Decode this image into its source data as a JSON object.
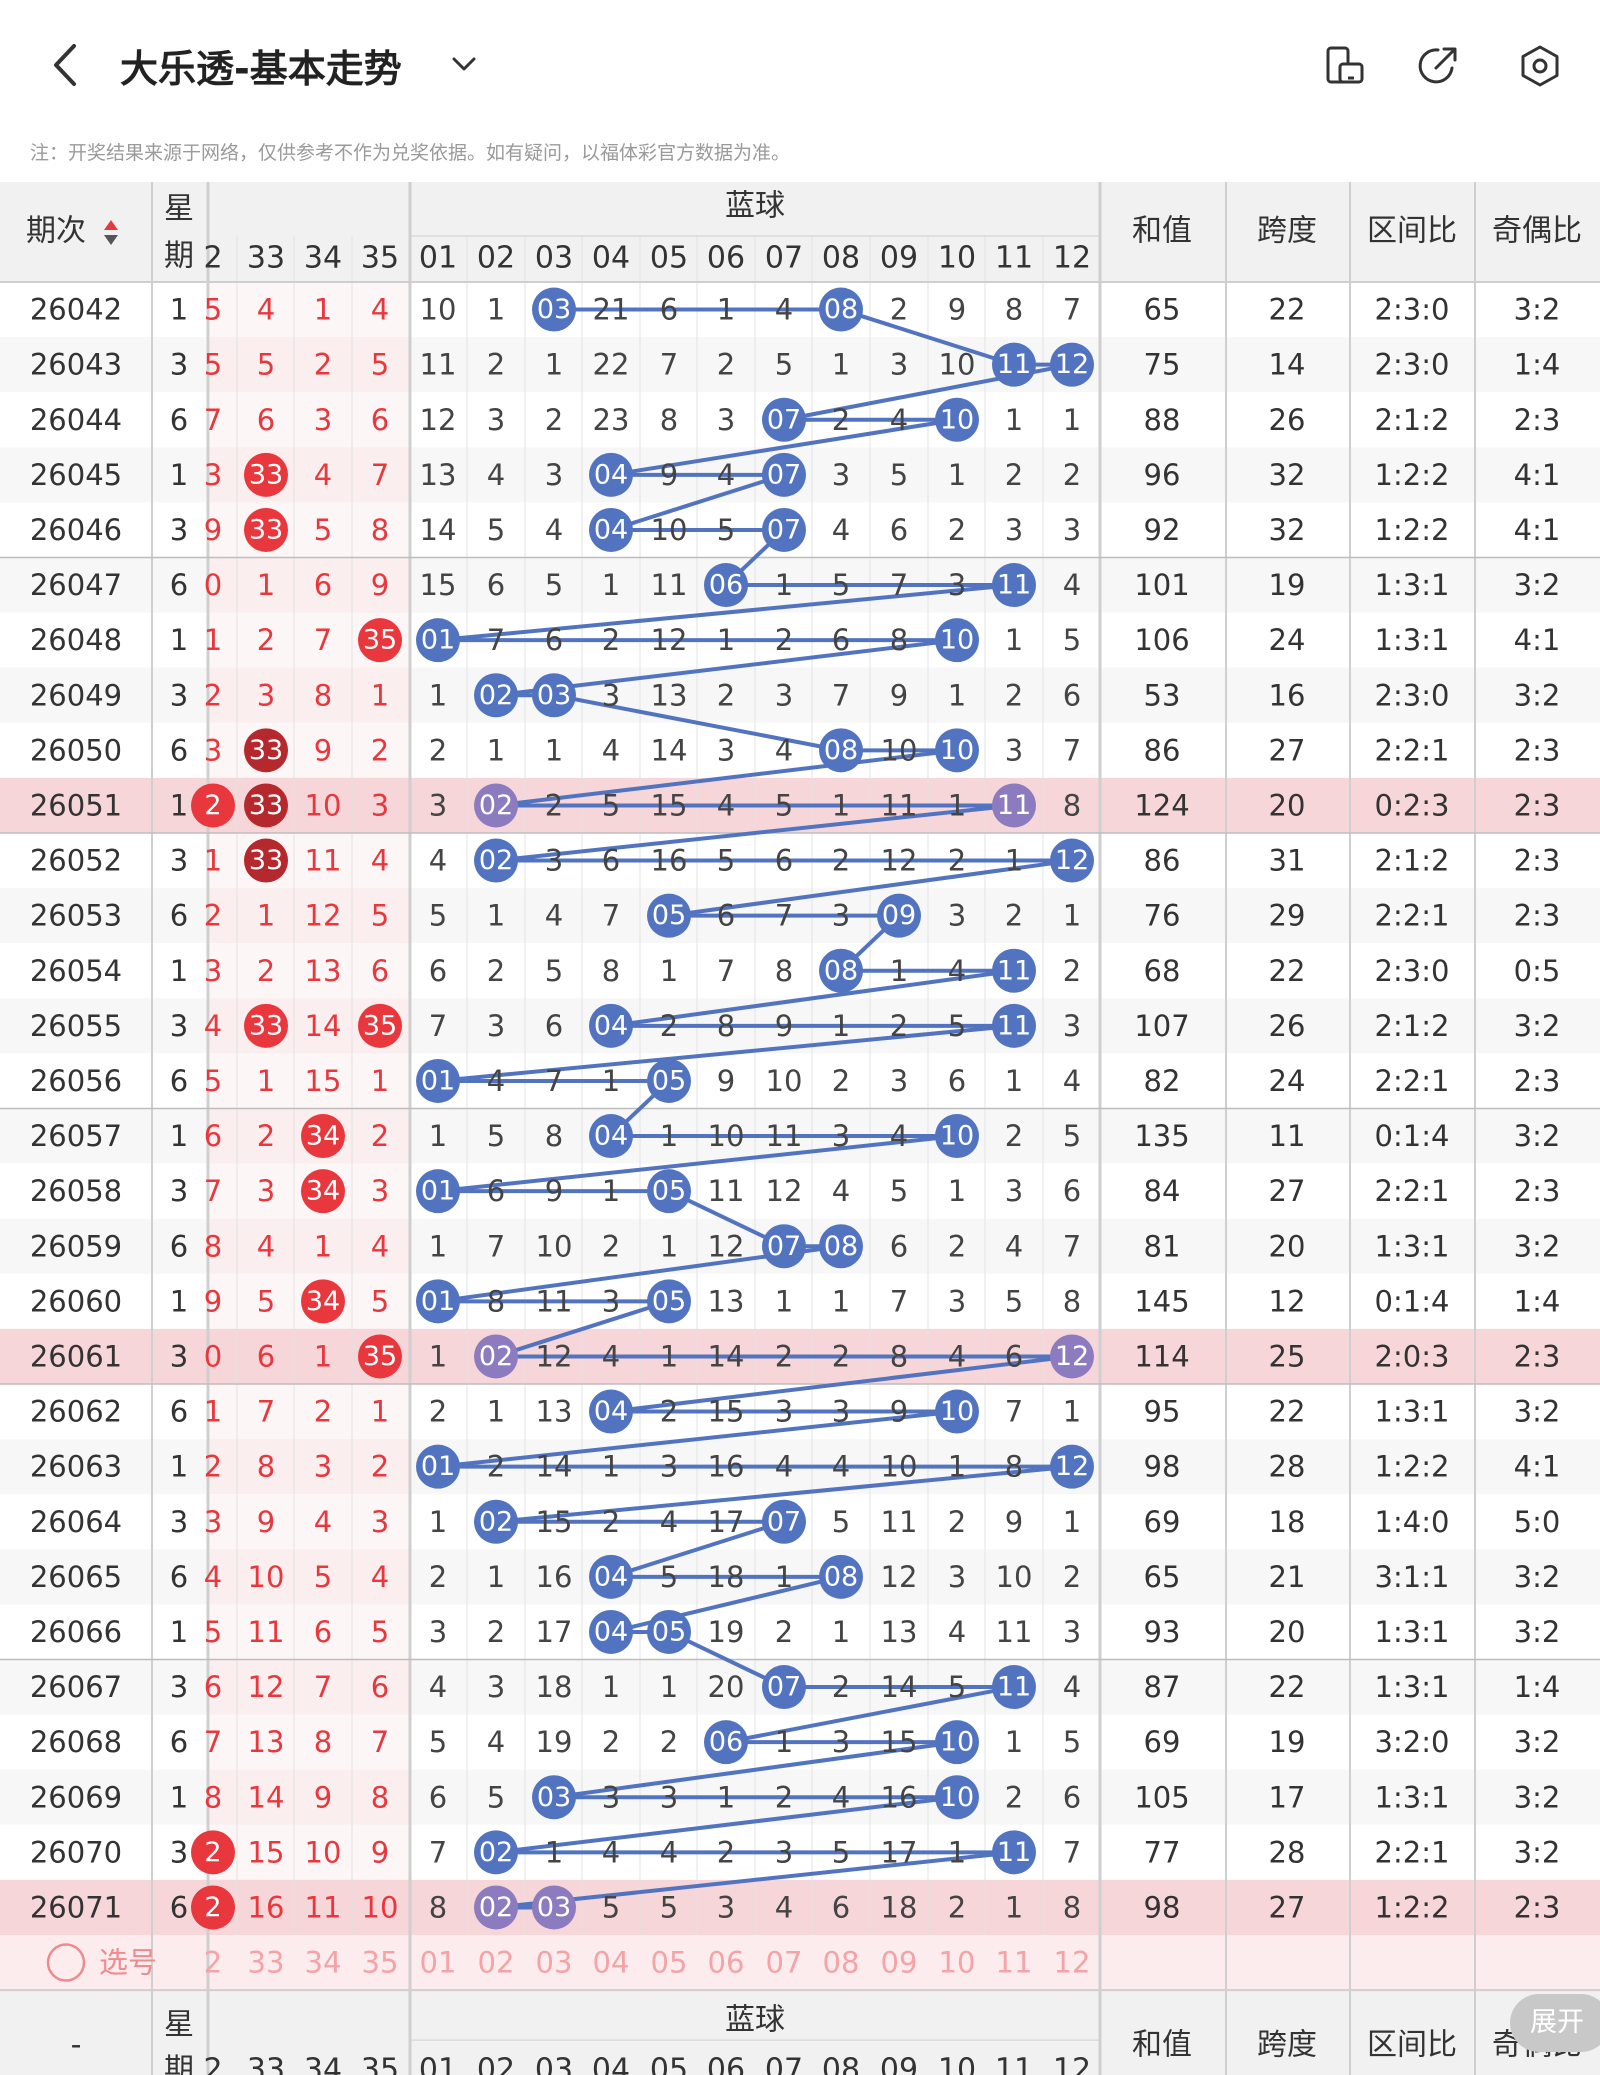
{
  "header": {
    "title": "大乐透-基本走势",
    "back_icon": "chevron-left-icon",
    "dropdown_icon": "chevron-down-icon",
    "icons": [
      "phone-landscape-icon",
      "share-icon",
      "settings-icon"
    ]
  },
  "notice": "注：开奖结果来源于网络，仅供参考不作为兑奖依据。如有疑问，以福体彩官方数据为准。",
  "table": {
    "col_period": "期次",
    "col_week": "星期",
    "blue_group": "蓝球",
    "front_visible_cols": [
      "2",
      "33",
      "34",
      "35"
    ],
    "blue_cols": [
      "01",
      "02",
      "03",
      "04",
      "05",
      "06",
      "07",
      "08",
      "09",
      "10",
      "11",
      "12"
    ],
    "stat_cols": [
      "和值",
      "跨度",
      "区间比",
      "奇偶比"
    ],
    "rows": [
      {
        "p": "26042",
        "w": "1",
        "f": [
          "5",
          "4",
          "1",
          "4"
        ],
        "fh": [],
        "b": [
          "10",
          "1",
          "03",
          "21",
          "6",
          "1",
          "4",
          "08",
          "2",
          "9",
          "8",
          "7"
        ],
        "bh": [
          3,
          8
        ],
        "s": [
          "65",
          "22",
          "2:3:0",
          "3:2"
        ]
      },
      {
        "p": "26043",
        "w": "3",
        "f": [
          "5",
          "5",
          "2",
          "5"
        ],
        "fh": [],
        "b": [
          "11",
          "2",
          "1",
          "22",
          "7",
          "2",
          "5",
          "1",
          "3",
          "10",
          "11",
          "12"
        ],
        "bh": [
          11,
          12
        ],
        "s": [
          "75",
          "14",
          "2:3:0",
          "1:4"
        ]
      },
      {
        "p": "26044",
        "w": "6",
        "f": [
          "7",
          "6",
          "3",
          "6"
        ],
        "fh": [],
        "b": [
          "12",
          "3",
          "2",
          "23",
          "8",
          "3",
          "07",
          "2",
          "4",
          "10",
          "1",
          "1"
        ],
        "bh": [
          7,
          10
        ],
        "s": [
          "88",
          "26",
          "2:1:2",
          "2:3"
        ]
      },
      {
        "p": "26045",
        "w": "1",
        "f": [
          "3",
          "33",
          "4",
          "7"
        ],
        "fh": [
          1
        ],
        "b": [
          "13",
          "4",
          "3",
          "04",
          "9",
          "4",
          "07",
          "3",
          "5",
          "1",
          "2",
          "2"
        ],
        "bh": [
          4,
          7
        ],
        "s": [
          "96",
          "32",
          "1:2:2",
          "4:1"
        ]
      },
      {
        "p": "26046",
        "w": "3",
        "f": [
          "9",
          "33",
          "5",
          "8"
        ],
        "fh": [
          1
        ],
        "b": [
          "14",
          "5",
          "4",
          "04",
          "10",
          "5",
          "07",
          "4",
          "6",
          "2",
          "3",
          "3"
        ],
        "bh": [
          4,
          7
        ],
        "s": [
          "92",
          "32",
          "1:2:2",
          "4:1"
        ]
      },
      {
        "p": "26047",
        "w": "6",
        "f": [
          "0",
          "1",
          "6",
          "9"
        ],
        "fh": [],
        "b": [
          "15",
          "6",
          "5",
          "1",
          "11",
          "06",
          "1",
          "5",
          "7",
          "3",
          "11",
          "4"
        ],
        "bh": [
          6,
          11
        ],
        "s": [
          "101",
          "19",
          "1:3:1",
          "3:2"
        ]
      },
      {
        "p": "26048",
        "w": "1",
        "f": [
          "1",
          "2",
          "7",
          "35"
        ],
        "fh": [
          3
        ],
        "b": [
          "01",
          "7",
          "6",
          "2",
          "12",
          "1",
          "2",
          "6",
          "8",
          "10",
          "1",
          "5"
        ],
        "bh": [
          1,
          10
        ],
        "s": [
          "106",
          "24",
          "1:3:1",
          "4:1"
        ]
      },
      {
        "p": "26049",
        "w": "3",
        "f": [
          "2",
          "3",
          "8",
          "1"
        ],
        "fh": [],
        "b": [
          "1",
          "02",
          "03",
          "3",
          "13",
          "2",
          "3",
          "7",
          "9",
          "1",
          "2",
          "6"
        ],
        "bh": [
          2,
          3
        ],
        "s": [
          "53",
          "16",
          "2:3:0",
          "3:2"
        ]
      },
      {
        "p": "26050",
        "w": "6",
        "f": [
          "3",
          "33",
          "9",
          "2"
        ],
        "fh": [
          1
        ],
        "b": [
          "2",
          "1",
          "1",
          "4",
          "14",
          "3",
          "4",
          "08",
          "10",
          "10",
          "3",
          "7"
        ],
        "bh": [
          8,
          10
        ],
        "s": [
          "86",
          "27",
          "2:2:1",
          "2:3"
        ]
      },
      {
        "p": "26051",
        "w": "1",
        "f": [
          "2",
          "33",
          "10",
          "3"
        ],
        "fh": [
          0,
          1
        ],
        "b": [
          "3",
          "02",
          "2",
          "5",
          "15",
          "4",
          "5",
          "1",
          "11",
          "1",
          "11",
          "8"
        ],
        "bh": [
          2,
          11
        ],
        "s": [
          "124",
          "20",
          "0:2:3",
          "2:3"
        ],
        "hl": true
      },
      {
        "p": "26052",
        "w": "3",
        "f": [
          "1",
          "33",
          "11",
          "4"
        ],
        "fh": [
          1
        ],
        "b": [
          "4",
          "02",
          "3",
          "6",
          "16",
          "5",
          "6",
          "2",
          "12",
          "2",
          "1",
          "12"
        ],
        "bh": [
          2,
          12
        ],
        "s": [
          "86",
          "31",
          "2:1:2",
          "2:3"
        ]
      },
      {
        "p": "26053",
        "w": "6",
        "f": [
          "2",
          "1",
          "12",
          "5"
        ],
        "fh": [],
        "b": [
          "5",
          "1",
          "4",
          "7",
          "05",
          "6",
          "7",
          "3",
          "09",
          "3",
          "2",
          "1"
        ],
        "bh": [
          5,
          9
        ],
        "s": [
          "76",
          "29",
          "2:2:1",
          "2:3"
        ]
      },
      {
        "p": "26054",
        "w": "1",
        "f": [
          "3",
          "2",
          "13",
          "6"
        ],
        "fh": [],
        "b": [
          "6",
          "2",
          "5",
          "8",
          "1",
          "7",
          "8",
          "08",
          "1",
          "4",
          "11",
          "2"
        ],
        "bh": [
          8,
          11
        ],
        "s": [
          "68",
          "22",
          "2:3:0",
          "0:5"
        ]
      },
      {
        "p": "26055",
        "w": "3",
        "f": [
          "4",
          "33",
          "14",
          "35"
        ],
        "fh": [
          1,
          3
        ],
        "b": [
          "7",
          "3",
          "6",
          "04",
          "2",
          "8",
          "9",
          "1",
          "2",
          "5",
          "11",
          "3"
        ],
        "bh": [
          4,
          11
        ],
        "s": [
          "107",
          "26",
          "2:1:2",
          "3:2"
        ]
      },
      {
        "p": "26056",
        "w": "6",
        "f": [
          "5",
          "1",
          "15",
          "1"
        ],
        "fh": [],
        "b": [
          "01",
          "4",
          "7",
          "1",
          "05",
          "9",
          "10",
          "2",
          "3",
          "6",
          "1",
          "4"
        ],
        "bh": [
          1,
          5
        ],
        "s": [
          "82",
          "24",
          "2:2:1",
          "2:3"
        ]
      },
      {
        "p": "26057",
        "w": "1",
        "f": [
          "6",
          "2",
          "34",
          "2"
        ],
        "fh": [
          2
        ],
        "b": [
          "1",
          "5",
          "8",
          "04",
          "1",
          "10",
          "11",
          "3",
          "4",
          "10",
          "2",
          "5"
        ],
        "bh": [
          4,
          10
        ],
        "s": [
          "135",
          "11",
          "0:1:4",
          "3:2"
        ]
      },
      {
        "p": "26058",
        "w": "3",
        "f": [
          "7",
          "3",
          "34",
          "3"
        ],
        "fh": [
          2
        ],
        "b": [
          "01",
          "6",
          "9",
          "1",
          "05",
          "11",
          "12",
          "4",
          "5",
          "1",
          "3",
          "6"
        ],
        "bh": [
          1,
          5
        ],
        "s": [
          "84",
          "27",
          "2:2:1",
          "2:3"
        ]
      },
      {
        "p": "26059",
        "w": "6",
        "f": [
          "8",
          "4",
          "1",
          "4"
        ],
        "fh": [],
        "b": [
          "1",
          "7",
          "10",
          "2",
          "1",
          "12",
          "07",
          "08",
          "6",
          "2",
          "4",
          "7"
        ],
        "bh": [
          7,
          8
        ],
        "s": [
          "81",
          "20",
          "1:3:1",
          "3:2"
        ]
      },
      {
        "p": "26060",
        "w": "1",
        "f": [
          "9",
          "5",
          "34",
          "5"
        ],
        "fh": [
          2
        ],
        "b": [
          "01",
          "8",
          "11",
          "3",
          "05",
          "13",
          "1",
          "1",
          "7",
          "3",
          "5",
          "8"
        ],
        "bh": [
          1,
          5
        ],
        "s": [
          "145",
          "12",
          "0:1:4",
          "1:4"
        ]
      },
      {
        "p": "26061",
        "w": "3",
        "f": [
          "0",
          "6",
          "1",
          "35"
        ],
        "fh": [
          3
        ],
        "b": [
          "1",
          "02",
          "12",
          "4",
          "1",
          "14",
          "2",
          "2",
          "8",
          "4",
          "6",
          "12"
        ],
        "bh": [
          2,
          12
        ],
        "s": [
          "114",
          "25",
          "2:0:3",
          "2:3"
        ],
        "hl": true
      },
      {
        "p": "26062",
        "w": "6",
        "f": [
          "1",
          "7",
          "2",
          "1"
        ],
        "fh": [],
        "b": [
          "2",
          "1",
          "13",
          "04",
          "2",
          "15",
          "3",
          "3",
          "9",
          "10",
          "7",
          "1"
        ],
        "bh": [
          4,
          10
        ],
        "s": [
          "95",
          "22",
          "1:3:1",
          "3:2"
        ]
      },
      {
        "p": "26063",
        "w": "1",
        "f": [
          "2",
          "8",
          "3",
          "2"
        ],
        "fh": [],
        "b": [
          "01",
          "2",
          "14",
          "1",
          "3",
          "16",
          "4",
          "4",
          "10",
          "1",
          "8",
          "12"
        ],
        "bh": [
          1,
          12
        ],
        "s": [
          "98",
          "28",
          "1:2:2",
          "4:1"
        ]
      },
      {
        "p": "26064",
        "w": "3",
        "f": [
          "3",
          "9",
          "4",
          "3"
        ],
        "fh": [],
        "b": [
          "1",
          "02",
          "15",
          "2",
          "4",
          "17",
          "07",
          "5",
          "11",
          "2",
          "9",
          "1"
        ],
        "bh": [
          2,
          7
        ],
        "s": [
          "69",
          "18",
          "1:4:0",
          "5:0"
        ]
      },
      {
        "p": "26065",
        "w": "6",
        "f": [
          "4",
          "10",
          "5",
          "4"
        ],
        "fh": [],
        "b": [
          "2",
          "1",
          "16",
          "04",
          "5",
          "18",
          "1",
          "08",
          "12",
          "3",
          "10",
          "2"
        ],
        "bh": [
          4,
          8
        ],
        "s": [
          "65",
          "21",
          "3:1:1",
          "3:2"
        ]
      },
      {
        "p": "26066",
        "w": "1",
        "f": [
          "5",
          "11",
          "6",
          "5"
        ],
        "fh": [],
        "b": [
          "3",
          "2",
          "17",
          "04",
          "05",
          "19",
          "2",
          "1",
          "13",
          "4",
          "11",
          "3"
        ],
        "bh": [
          4,
          5
        ],
        "s": [
          "93",
          "20",
          "1:3:1",
          "3:2"
        ]
      },
      {
        "p": "26067",
        "w": "3",
        "f": [
          "6",
          "12",
          "7",
          "6"
        ],
        "fh": [],
        "b": [
          "4",
          "3",
          "18",
          "1",
          "1",
          "20",
          "07",
          "2",
          "14",
          "5",
          "11",
          "4"
        ],
        "bh": [
          7,
          11
        ],
        "s": [
          "87",
          "22",
          "1:3:1",
          "1:4"
        ]
      },
      {
        "p": "26068",
        "w": "6",
        "f": [
          "7",
          "13",
          "8",
          "7"
        ],
        "fh": [],
        "b": [
          "5",
          "4",
          "19",
          "2",
          "2",
          "06",
          "1",
          "3",
          "15",
          "10",
          "1",
          "5"
        ],
        "bh": [
          6,
          10
        ],
        "s": [
          "69",
          "19",
          "3:2:0",
          "3:2"
        ]
      },
      {
        "p": "26069",
        "w": "1",
        "f": [
          "8",
          "14",
          "9",
          "8"
        ],
        "fh": [],
        "b": [
          "6",
          "5",
          "03",
          "3",
          "3",
          "1",
          "2",
          "4",
          "16",
          "10",
          "2",
          "6"
        ],
        "bh": [
          3,
          10
        ],
        "s": [
          "105",
          "17",
          "1:3:1",
          "3:2"
        ]
      },
      {
        "p": "26070",
        "w": "3",
        "f": [
          "2",
          "15",
          "10",
          "9"
        ],
        "fh": [
          0
        ],
        "b": [
          "7",
          "02",
          "1",
          "4",
          "4",
          "2",
          "3",
          "5",
          "17",
          "1",
          "11",
          "7"
        ],
        "bh": [
          2,
          11
        ],
        "s": [
          "77",
          "28",
          "2:2:1",
          "3:2"
        ]
      },
      {
        "p": "26071",
        "w": "6",
        "f": [
          "2",
          "16",
          "11",
          "10"
        ],
        "fh": [
          0
        ],
        "b": [
          "8",
          "02",
          "03",
          "5",
          "5",
          "3",
          "4",
          "6",
          "18",
          "2",
          "1",
          "8"
        ],
        "bh": [
          2,
          3
        ],
        "s": [
          "98",
          "27",
          "1:2:2",
          "2:3"
        ],
        "hl": true
      }
    ],
    "select_label": "选号",
    "footer_period": "-",
    "expand_label": "展开"
  },
  "colors": {
    "red": "#e8373d",
    "dark_red": "#b5282d",
    "blue": "#5274c0",
    "purple": "#8c7cbf",
    "highlight_row": "#f6d6d9",
    "grid": "#cfcfcf"
  }
}
